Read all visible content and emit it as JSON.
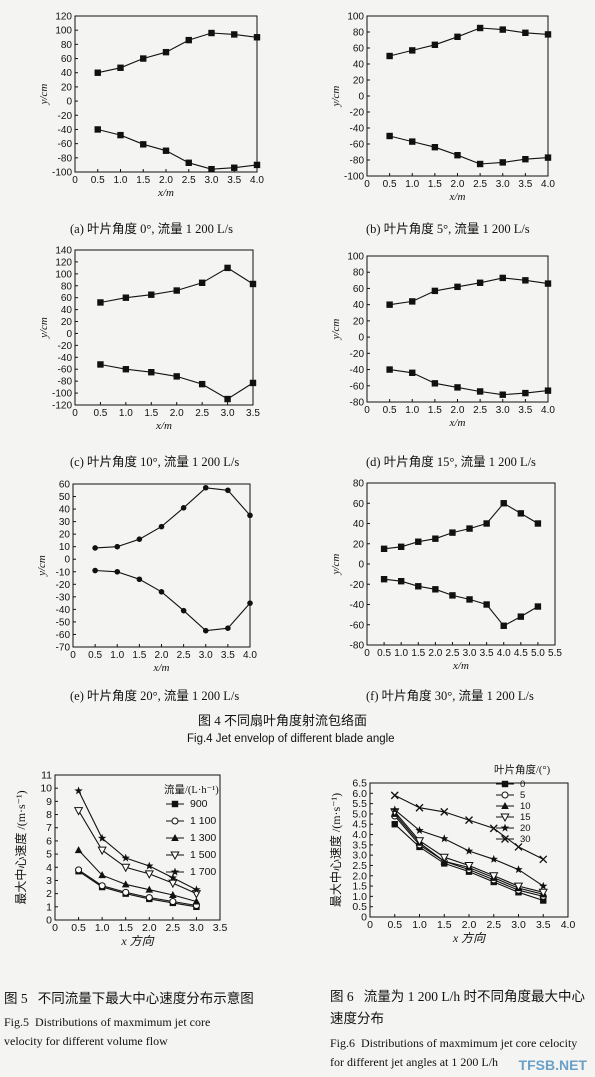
{
  "fig4": {
    "title": "图 4    不同扇叶角度射流包络面",
    "title_en": "Fig.4    Jet envelop of different blade angle"
  },
  "fig5": {
    "label": "图 5",
    "caption": "不同流量下最大中心速度分布示意图",
    "label_en": "Fig.5",
    "caption_en": "Distributions of maxmimum jet core velocity for different volume flow"
  },
  "fig6": {
    "label": "图 6",
    "caption": "流量为 1 200 L/h 时不同角度最大中心速度分布",
    "label_en": "Fig.6",
    "caption_en": "Distributions of maxmimum jet core celocity for different jet angles at 1 200 L/h"
  },
  "watermark": "TFSB.NET",
  "chart_data": [
    {
      "id": "a",
      "type": "line",
      "caption": "(a) 叶片角度 0°, 流量 1 200 L/s",
      "xlabel": "x/m",
      "ylabel": "y/cm",
      "xlim": [
        0,
        4.0
      ],
      "ylim": [
        -100,
        120
      ],
      "xticks": [
        "0",
        "0.5",
        "1.0",
        "1.5",
        "2.0",
        "2.5",
        "3.0",
        "3.5",
        "4.0"
      ],
      "yticks": [
        "-100",
        "-80",
        "-60",
        "-40",
        "-20",
        "0",
        "20",
        "40",
        "60",
        "80",
        "100",
        "120"
      ],
      "marker": "square",
      "x": [
        0.5,
        1.0,
        1.5,
        2.0,
        2.5,
        3.0,
        3.5,
        4.0
      ],
      "series": [
        {
          "values": [
            40,
            47,
            60,
            69,
            86,
            96,
            94,
            90
          ]
        },
        {
          "values": [
            -40,
            -48,
            -61,
            -70,
            -87,
            -96,
            -94,
            -90
          ]
        }
      ]
    },
    {
      "id": "b",
      "type": "line",
      "caption": "(b) 叶片角度 5°, 流量 1 200 L/s",
      "xlabel": "x/m",
      "ylabel": "y/cm",
      "xlim": [
        0,
        4.0
      ],
      "ylim": [
        -100,
        100
      ],
      "xticks": [
        "0",
        "0.5",
        "1.0",
        "1.5",
        "2.0",
        "2.5",
        "3.0",
        "3.5",
        "4.0"
      ],
      "yticks": [
        "-100",
        "-80",
        "-60",
        "-40",
        "-20",
        "0",
        "20",
        "40",
        "60",
        "80",
        "100"
      ],
      "marker": "square",
      "x": [
        0.5,
        1.0,
        1.5,
        2.0,
        2.5,
        3.0,
        3.5,
        4.0
      ],
      "series": [
        {
          "values": [
            50,
            57,
            64,
            74,
            85,
            83,
            79,
            77
          ]
        },
        {
          "values": [
            -50,
            -57,
            -64,
            -74,
            -85,
            -83,
            -79,
            -77
          ]
        }
      ]
    },
    {
      "id": "c",
      "type": "line",
      "caption": "(c) 叶片角度 10°, 流量 1 200 L/s",
      "xlabel": "x/m",
      "ylabel": "y/cm",
      "xlim": [
        0,
        3.5
      ],
      "ylim": [
        -120,
        140
      ],
      "xticks": [
        "0",
        "0.5",
        "1.0",
        "1.5",
        "2.0",
        "2.5",
        "3.0",
        "3.5"
      ],
      "yticks": [
        "-120",
        "-100",
        "-80",
        "-60",
        "-40",
        "-20",
        "0",
        "20",
        "40",
        "60",
        "80",
        "100",
        "120",
        "140"
      ],
      "marker": "square",
      "x": [
        0.5,
        1.0,
        1.5,
        2.0,
        2.5,
        3.0,
        3.5
      ],
      "series": [
        {
          "values": [
            52,
            60,
            65,
            72,
            85,
            110,
            83
          ]
        },
        {
          "values": [
            -52,
            -60,
            -65,
            -72,
            -85,
            -110,
            -83
          ]
        }
      ]
    },
    {
      "id": "d",
      "type": "line",
      "caption": "(d) 叶片角度 15°, 流量 1 200 L/s",
      "xlabel": "x/m",
      "ylabel": "y/cm",
      "xlim": [
        0,
        4.0
      ],
      "ylim": [
        -80,
        100
      ],
      "xticks": [
        "0",
        "0.5",
        "1.0",
        "1.5",
        "2.0",
        "2.5",
        "3.0",
        "3.5",
        "4.0"
      ],
      "yticks": [
        "-80",
        "-60",
        "-40",
        "-20",
        "0",
        "20",
        "40",
        "60",
        "80",
        "100"
      ],
      "marker": "square",
      "x": [
        0.5,
        1.0,
        1.5,
        2.0,
        2.5,
        3.0,
        3.5,
        4.0
      ],
      "series": [
        {
          "values": [
            40,
            44,
            57,
            62,
            67,
            73,
            70,
            66
          ]
        },
        {
          "values": [
            -40,
            -44,
            -57,
            -62,
            -67,
            -71,
            -69,
            -66
          ]
        }
      ]
    },
    {
      "id": "e",
      "type": "line",
      "caption": "(e) 叶片角度 20°, 流量 1 200 L/s",
      "xlabel": "x/m",
      "ylabel": "y/cm",
      "xlim": [
        0,
        4.0
      ],
      "ylim": [
        -70,
        60
      ],
      "xticks": [
        "0",
        "0.5",
        "1.0",
        "1.5",
        "2.0",
        "2.5",
        "3.0",
        "3.5",
        "4.0"
      ],
      "yticks": [
        "-70",
        "-60",
        "-50",
        "-40",
        "-30",
        "-20",
        "-10",
        "0",
        "10",
        "20",
        "30",
        "40",
        "50",
        "60"
      ],
      "marker": "dot",
      "x": [
        0.5,
        1.0,
        1.5,
        2.0,
        2.5,
        3.0,
        3.5,
        4.0
      ],
      "series": [
        {
          "values": [
            9,
            10,
            16,
            26,
            41,
            57,
            55,
            35
          ]
        },
        {
          "values": [
            -9,
            -10,
            -16,
            -26,
            -41,
            -57,
            -55,
            -35
          ]
        }
      ]
    },
    {
      "id": "f",
      "type": "line",
      "caption": "(f) 叶片角度 30°, 流量 1 200 L/s",
      "xlabel": "x/m",
      "ylabel": "y/cm",
      "xlim": [
        0,
        5.5
      ],
      "ylim": [
        -80,
        80
      ],
      "xticks": [
        "0",
        "0.5",
        "1.0",
        "1.5",
        "2.0",
        "2.5",
        "3.0",
        "3.5",
        "4.0",
        "4.5",
        "5.0",
        "5.5"
      ],
      "yticks": [
        "-80",
        "-60",
        "-40",
        "-20",
        "0",
        "20",
        "40",
        "60",
        "80"
      ],
      "marker": "square",
      "x": [
        0.5,
        1.0,
        1.5,
        2.0,
        2.5,
        3.0,
        3.5,
        4.0,
        4.5,
        5.0
      ],
      "series": [
        {
          "values": [
            15,
            17,
            22,
            25,
            31,
            35,
            40,
            60,
            50,
            40
          ]
        },
        {
          "values": [
            -15,
            -17,
            -22,
            -25,
            -31,
            -35,
            -40,
            -61,
            -52,
            -42
          ]
        }
      ]
    },
    {
      "id": "g",
      "type": "line",
      "xlabel": "x 方向",
      "ylabel": "最大中心速度 /(m·s⁻¹)",
      "xlim": [
        0,
        3.5
      ],
      "ylim": [
        0,
        11
      ],
      "xticks": [
        "0",
        "0.5",
        "1.0",
        "1.5",
        "2.0",
        "2.5",
        "3.0",
        "3.5"
      ],
      "yticks": [
        "0",
        "1",
        "2",
        "3",
        "4",
        "5",
        "6",
        "7",
        "8",
        "9",
        "10",
        "11"
      ],
      "legend_title": "流量/(L·h⁻¹)",
      "legend_pos": "right",
      "x": [
        0.5,
        1.0,
        1.5,
        2.0,
        2.5,
        3.0
      ],
      "series": [
        {
          "name": "900",
          "marker": "square",
          "values": [
            3.7,
            2.5,
            2.0,
            1.6,
            1.3,
            1.0
          ]
        },
        {
          "name": "1 100",
          "marker": "circle",
          "values": [
            3.8,
            2.6,
            2.1,
            1.7,
            1.4,
            1.1
          ]
        },
        {
          "name": "1 300",
          "marker": "triangle",
          "values": [
            5.3,
            3.4,
            2.7,
            2.3,
            1.9,
            1.4
          ]
        },
        {
          "name": "1 500",
          "marker": "triangle-down",
          "values": [
            8.3,
            5.3,
            4.0,
            3.5,
            2.8,
            2.0
          ]
        },
        {
          "name": "1 700",
          "marker": "star",
          "values": [
            9.8,
            6.2,
            4.7,
            4.1,
            3.2,
            2.3
          ]
        }
      ]
    },
    {
      "id": "h",
      "type": "line",
      "xlabel": "x 方向",
      "ylabel": "最大中心速度 /(m·s⁻¹)",
      "xlim": [
        0,
        4.0
      ],
      "ylim": [
        0,
        6.5
      ],
      "xticks": [
        "0",
        "0.5",
        "1.0",
        "1.5",
        "2.0",
        "2.5",
        "3.0",
        "3.5",
        "4.0"
      ],
      "yticks": [
        "0",
        "0.5",
        "1.0",
        "1.5",
        "2.0",
        "2.5",
        "3.0",
        "3.5",
        "4.0",
        "4.5",
        "5.0",
        "5.5",
        "6.0",
        "6.5"
      ],
      "legend_title": "叶片角度/(°)",
      "legend_pos": "top-right",
      "x": [
        0.5,
        1.0,
        1.5,
        2.0,
        2.5,
        3.0,
        3.5
      ],
      "series": [
        {
          "name": "0",
          "marker": "square",
          "values": [
            4.5,
            3.4,
            2.6,
            2.2,
            1.7,
            1.2,
            0.8
          ]
        },
        {
          "name": "5",
          "marker": "circle",
          "values": [
            4.9,
            3.5,
            2.7,
            2.3,
            1.8,
            1.3,
            1.0
          ]
        },
        {
          "name": "10",
          "marker": "triangle",
          "values": [
            5.0,
            3.6,
            2.7,
            2.4,
            1.9,
            1.4,
            1.1
          ]
        },
        {
          "name": "15",
          "marker": "triangle-down",
          "values": [
            5.1,
            3.7,
            2.9,
            2.5,
            2.0,
            1.5,
            1.2
          ]
        },
        {
          "name": "20",
          "marker": "star",
          "values": [
            5.2,
            4.2,
            3.8,
            3.2,
            2.8,
            2.3,
            1.5
          ]
        },
        {
          "name": "30",
          "marker": "x",
          "values": [
            5.9,
            5.3,
            5.1,
            4.7,
            4.3,
            3.4,
            2.8
          ]
        }
      ]
    }
  ]
}
